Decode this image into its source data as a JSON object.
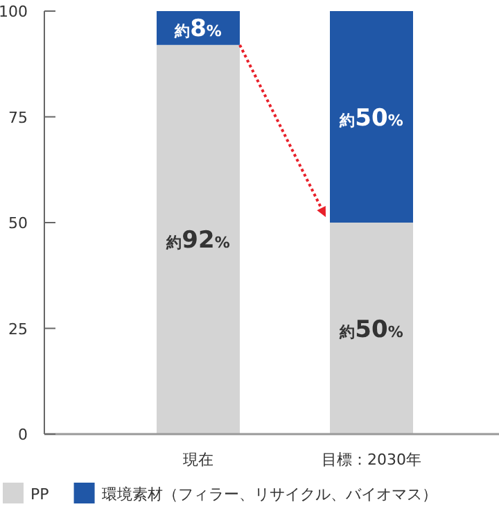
{
  "chart_data": {
    "type": "bar",
    "stacked": true,
    "categories": [
      "現在",
      "目標：2030年"
    ],
    "series": [
      {
        "name": "PP",
        "color": "#d4d4d4",
        "values": [
          92,
          50
        ],
        "value_labels": [
          "約92%",
          "約50%"
        ]
      },
      {
        "name": "環境素材（フィラー、リサイクル、バイオマス）",
        "color": "#2057a7",
        "values": [
          8,
          50
        ],
        "value_labels": [
          "約8%",
          "約50%"
        ]
      }
    ],
    "ylim": [
      0,
      100
    ],
    "yticks": [
      0,
      25,
      50,
      75,
      100
    ],
    "legend": "bottom"
  }
}
